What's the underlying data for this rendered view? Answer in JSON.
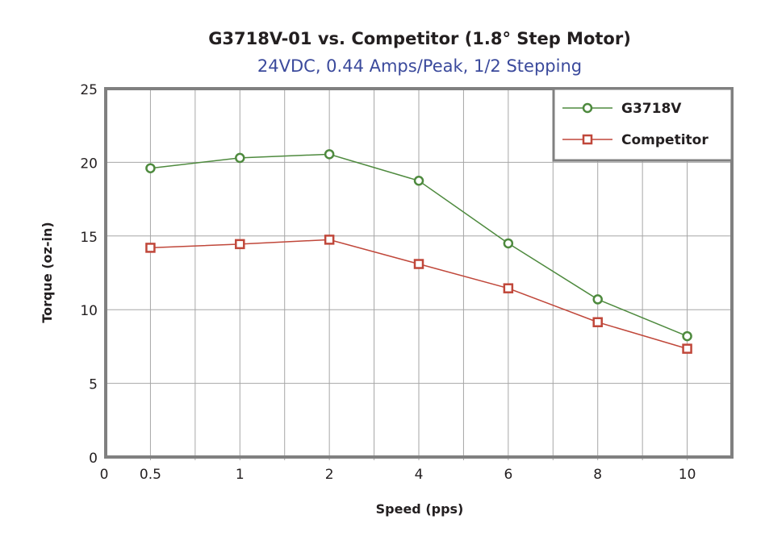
{
  "chart_data": {
    "type": "line",
    "title": "G3718V-01 vs. Competitor (1.8° Step Motor)",
    "subtitle": "24VDC, 0.44 Amps/Peak, 1/2 Stepping",
    "xlabel": "Speed (pps)",
    "ylabel": "Torque (oz-in)",
    "x_origin_label": "0",
    "categories": [
      "0.5",
      "1",
      "2",
      "4",
      "6",
      "8",
      "10"
    ],
    "ylim": [
      0,
      25
    ],
    "yticks": [
      0,
      5,
      10,
      15,
      20,
      25
    ],
    "grid": true,
    "legend_position": "top-right",
    "series": [
      {
        "name": "G3718V",
        "marker": "circle",
        "color": "#4e8a3e",
        "values": [
          19.6,
          20.3,
          20.55,
          18.75,
          14.5,
          10.7,
          8.2
        ]
      },
      {
        "name": "Competitor",
        "marker": "square",
        "color": "#c0473a",
        "values": [
          14.2,
          14.45,
          14.75,
          13.1,
          11.45,
          9.15,
          7.35
        ]
      }
    ]
  },
  "colors": {
    "title": "#231f20",
    "subtitle": "#3b4a9c",
    "frame": "#808080",
    "grid": "#a6a6a6"
  }
}
